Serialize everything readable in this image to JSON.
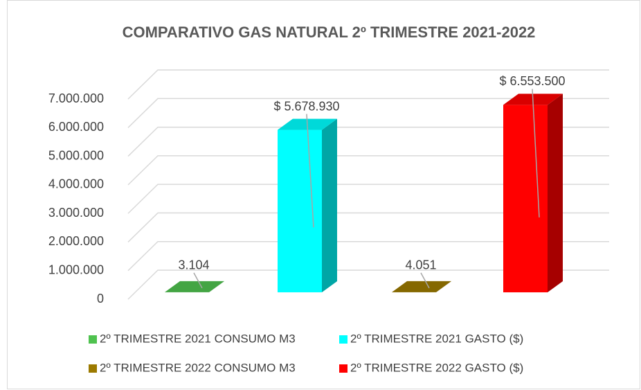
{
  "chart_data": {
    "type": "bar3d",
    "title": "COMPARATIVO GAS NATURAL  2º TRIMESTRE 2021-2022",
    "series": [
      {
        "name": "2º TRIMESTRE 2021 CONSUMO M3",
        "color": "#4fc24f",
        "values": [
          3104
        ],
        "value_labels": [
          "3.104"
        ]
      },
      {
        "name": "2º TRIMESTRE 2021 GASTO ($)",
        "color": "#00ffff",
        "values": [
          5678930
        ],
        "value_labels": [
          "$ 5.678.930"
        ]
      },
      {
        "name": "2º TRIMESTRE 2022 CONSUMO M3",
        "color": "#9c7a00",
        "values": [
          4051
        ],
        "value_labels": [
          "4.051"
        ]
      },
      {
        "name": "2º TRIMESTRE 2022 GASTO ($)",
        "color": "#ff0000",
        "values": [
          6553500
        ],
        "value_labels": [
          "$ 6.553.500"
        ]
      }
    ],
    "ylim": [
      0,
      7000000
    ],
    "yticks": [
      0,
      {
        "value": 1000000,
        "label": "1.000.000"
      },
      {
        "value": 2000000,
        "label": "2.000.000"
      },
      {
        "value": 3000000,
        "label": "3.000.000"
      },
      {
        "value": 4000000,
        "label": "4.000.000"
      },
      {
        "value": 5000000,
        "label": "5.000.000"
      },
      {
        "value": 6000000,
        "label": "6.000.000"
      },
      {
        "value": 7000000,
        "label": "7.000.000"
      }
    ],
    "grid": true
  }
}
